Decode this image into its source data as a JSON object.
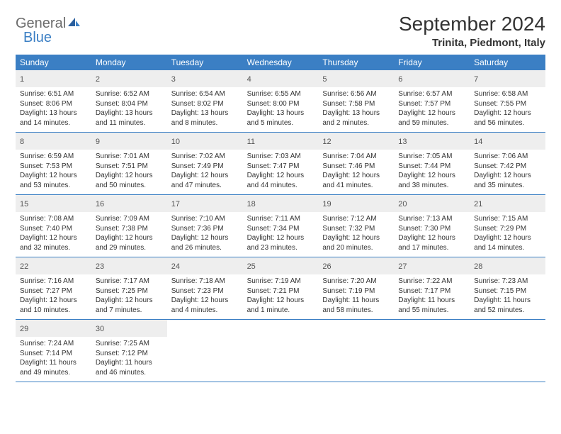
{
  "colors": {
    "header_bg": "#3b7fc4",
    "header_text": "#ffffff",
    "daynum_bg": "#eeeeee",
    "daynum_text": "#555555",
    "body_text": "#333333",
    "logo_gray": "#6b6b6b",
    "logo_blue": "#3b7fc4",
    "week_border": "#3b7fc4"
  },
  "logo": {
    "general": "General",
    "blue": "Blue"
  },
  "title": "September 2024",
  "location": "Trinita, Piedmont, Italy",
  "weekdays": [
    "Sunday",
    "Monday",
    "Tuesday",
    "Wednesday",
    "Thursday",
    "Friday",
    "Saturday"
  ],
  "weeks": [
    [
      {
        "num": "1",
        "sunrise": "Sunrise: 6:51 AM",
        "sunset": "Sunset: 8:06 PM",
        "daylight": "Daylight: 13 hours and 14 minutes."
      },
      {
        "num": "2",
        "sunrise": "Sunrise: 6:52 AM",
        "sunset": "Sunset: 8:04 PM",
        "daylight": "Daylight: 13 hours and 11 minutes."
      },
      {
        "num": "3",
        "sunrise": "Sunrise: 6:54 AM",
        "sunset": "Sunset: 8:02 PM",
        "daylight": "Daylight: 13 hours and 8 minutes."
      },
      {
        "num": "4",
        "sunrise": "Sunrise: 6:55 AM",
        "sunset": "Sunset: 8:00 PM",
        "daylight": "Daylight: 13 hours and 5 minutes."
      },
      {
        "num": "5",
        "sunrise": "Sunrise: 6:56 AM",
        "sunset": "Sunset: 7:58 PM",
        "daylight": "Daylight: 13 hours and 2 minutes."
      },
      {
        "num": "6",
        "sunrise": "Sunrise: 6:57 AM",
        "sunset": "Sunset: 7:57 PM",
        "daylight": "Daylight: 12 hours and 59 minutes."
      },
      {
        "num": "7",
        "sunrise": "Sunrise: 6:58 AM",
        "sunset": "Sunset: 7:55 PM",
        "daylight": "Daylight: 12 hours and 56 minutes."
      }
    ],
    [
      {
        "num": "8",
        "sunrise": "Sunrise: 6:59 AM",
        "sunset": "Sunset: 7:53 PM",
        "daylight": "Daylight: 12 hours and 53 minutes."
      },
      {
        "num": "9",
        "sunrise": "Sunrise: 7:01 AM",
        "sunset": "Sunset: 7:51 PM",
        "daylight": "Daylight: 12 hours and 50 minutes."
      },
      {
        "num": "10",
        "sunrise": "Sunrise: 7:02 AM",
        "sunset": "Sunset: 7:49 PM",
        "daylight": "Daylight: 12 hours and 47 minutes."
      },
      {
        "num": "11",
        "sunrise": "Sunrise: 7:03 AM",
        "sunset": "Sunset: 7:47 PM",
        "daylight": "Daylight: 12 hours and 44 minutes."
      },
      {
        "num": "12",
        "sunrise": "Sunrise: 7:04 AM",
        "sunset": "Sunset: 7:46 PM",
        "daylight": "Daylight: 12 hours and 41 minutes."
      },
      {
        "num": "13",
        "sunrise": "Sunrise: 7:05 AM",
        "sunset": "Sunset: 7:44 PM",
        "daylight": "Daylight: 12 hours and 38 minutes."
      },
      {
        "num": "14",
        "sunrise": "Sunrise: 7:06 AM",
        "sunset": "Sunset: 7:42 PM",
        "daylight": "Daylight: 12 hours and 35 minutes."
      }
    ],
    [
      {
        "num": "15",
        "sunrise": "Sunrise: 7:08 AM",
        "sunset": "Sunset: 7:40 PM",
        "daylight": "Daylight: 12 hours and 32 minutes."
      },
      {
        "num": "16",
        "sunrise": "Sunrise: 7:09 AM",
        "sunset": "Sunset: 7:38 PM",
        "daylight": "Daylight: 12 hours and 29 minutes."
      },
      {
        "num": "17",
        "sunrise": "Sunrise: 7:10 AM",
        "sunset": "Sunset: 7:36 PM",
        "daylight": "Daylight: 12 hours and 26 minutes."
      },
      {
        "num": "18",
        "sunrise": "Sunrise: 7:11 AM",
        "sunset": "Sunset: 7:34 PM",
        "daylight": "Daylight: 12 hours and 23 minutes."
      },
      {
        "num": "19",
        "sunrise": "Sunrise: 7:12 AM",
        "sunset": "Sunset: 7:32 PM",
        "daylight": "Daylight: 12 hours and 20 minutes."
      },
      {
        "num": "20",
        "sunrise": "Sunrise: 7:13 AM",
        "sunset": "Sunset: 7:30 PM",
        "daylight": "Daylight: 12 hours and 17 minutes."
      },
      {
        "num": "21",
        "sunrise": "Sunrise: 7:15 AM",
        "sunset": "Sunset: 7:29 PM",
        "daylight": "Daylight: 12 hours and 14 minutes."
      }
    ],
    [
      {
        "num": "22",
        "sunrise": "Sunrise: 7:16 AM",
        "sunset": "Sunset: 7:27 PM",
        "daylight": "Daylight: 12 hours and 10 minutes."
      },
      {
        "num": "23",
        "sunrise": "Sunrise: 7:17 AM",
        "sunset": "Sunset: 7:25 PM",
        "daylight": "Daylight: 12 hours and 7 minutes."
      },
      {
        "num": "24",
        "sunrise": "Sunrise: 7:18 AM",
        "sunset": "Sunset: 7:23 PM",
        "daylight": "Daylight: 12 hours and 4 minutes."
      },
      {
        "num": "25",
        "sunrise": "Sunrise: 7:19 AM",
        "sunset": "Sunset: 7:21 PM",
        "daylight": "Daylight: 12 hours and 1 minute."
      },
      {
        "num": "26",
        "sunrise": "Sunrise: 7:20 AM",
        "sunset": "Sunset: 7:19 PM",
        "daylight": "Daylight: 11 hours and 58 minutes."
      },
      {
        "num": "27",
        "sunrise": "Sunrise: 7:22 AM",
        "sunset": "Sunset: 7:17 PM",
        "daylight": "Daylight: 11 hours and 55 minutes."
      },
      {
        "num": "28",
        "sunrise": "Sunrise: 7:23 AM",
        "sunset": "Sunset: 7:15 PM",
        "daylight": "Daylight: 11 hours and 52 minutes."
      }
    ],
    [
      {
        "num": "29",
        "sunrise": "Sunrise: 7:24 AM",
        "sunset": "Sunset: 7:14 PM",
        "daylight": "Daylight: 11 hours and 49 minutes."
      },
      {
        "num": "30",
        "sunrise": "Sunrise: 7:25 AM",
        "sunset": "Sunset: 7:12 PM",
        "daylight": "Daylight: 11 hours and 46 minutes."
      },
      null,
      null,
      null,
      null,
      null
    ]
  ]
}
